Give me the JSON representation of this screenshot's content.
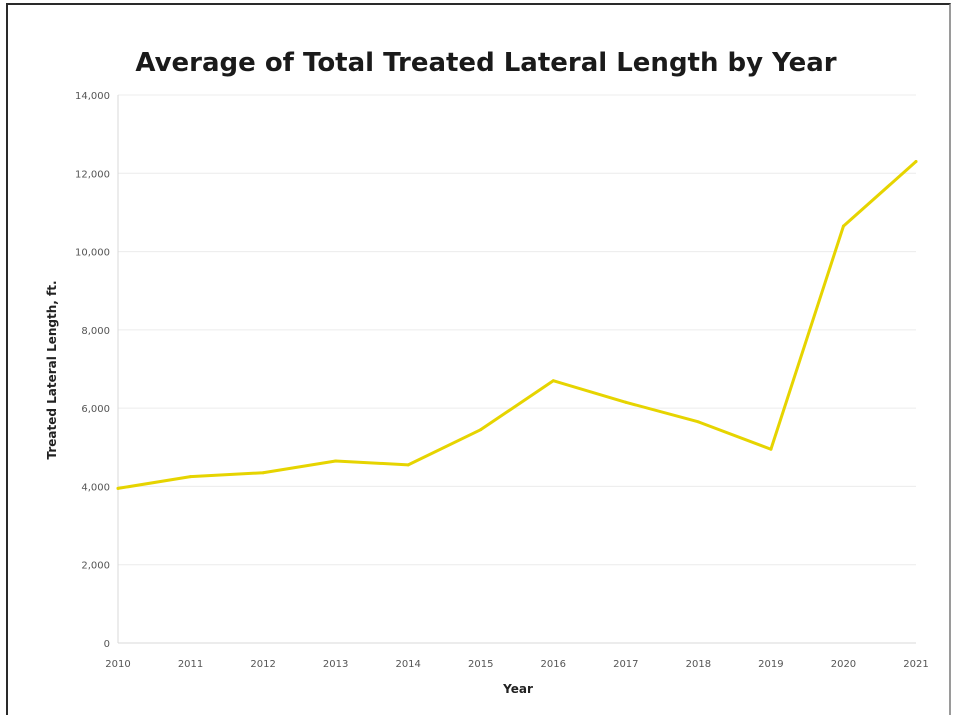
{
  "chart_data": {
    "type": "line",
    "title": "Average of Total Treated Lateral Length by Year",
    "xlabel": "Year",
    "ylabel": "Treated Lateral Length, ft.",
    "categories": [
      "2010",
      "2011",
      "2012",
      "2013",
      "2014",
      "2015",
      "2016",
      "2017",
      "2018",
      "2019",
      "2020",
      "2021"
    ],
    "series": [
      {
        "values": [
          3950,
          4250,
          4350,
          4650,
          4550,
          5450,
          6700,
          6150,
          5650,
          4950,
          10650,
          12300
        ],
        "color": "#e6d400"
      }
    ],
    "ylim": [
      0,
      14000
    ],
    "yticks": [
      0,
      2000,
      4000,
      6000,
      8000,
      10000,
      12000,
      14000
    ],
    "ytick_labels": [
      "0",
      "2,000",
      "4,000",
      "6,000",
      "8,000",
      "10,000",
      "12,000",
      "14,000"
    ],
    "grid": true,
    "legend": "none"
  }
}
